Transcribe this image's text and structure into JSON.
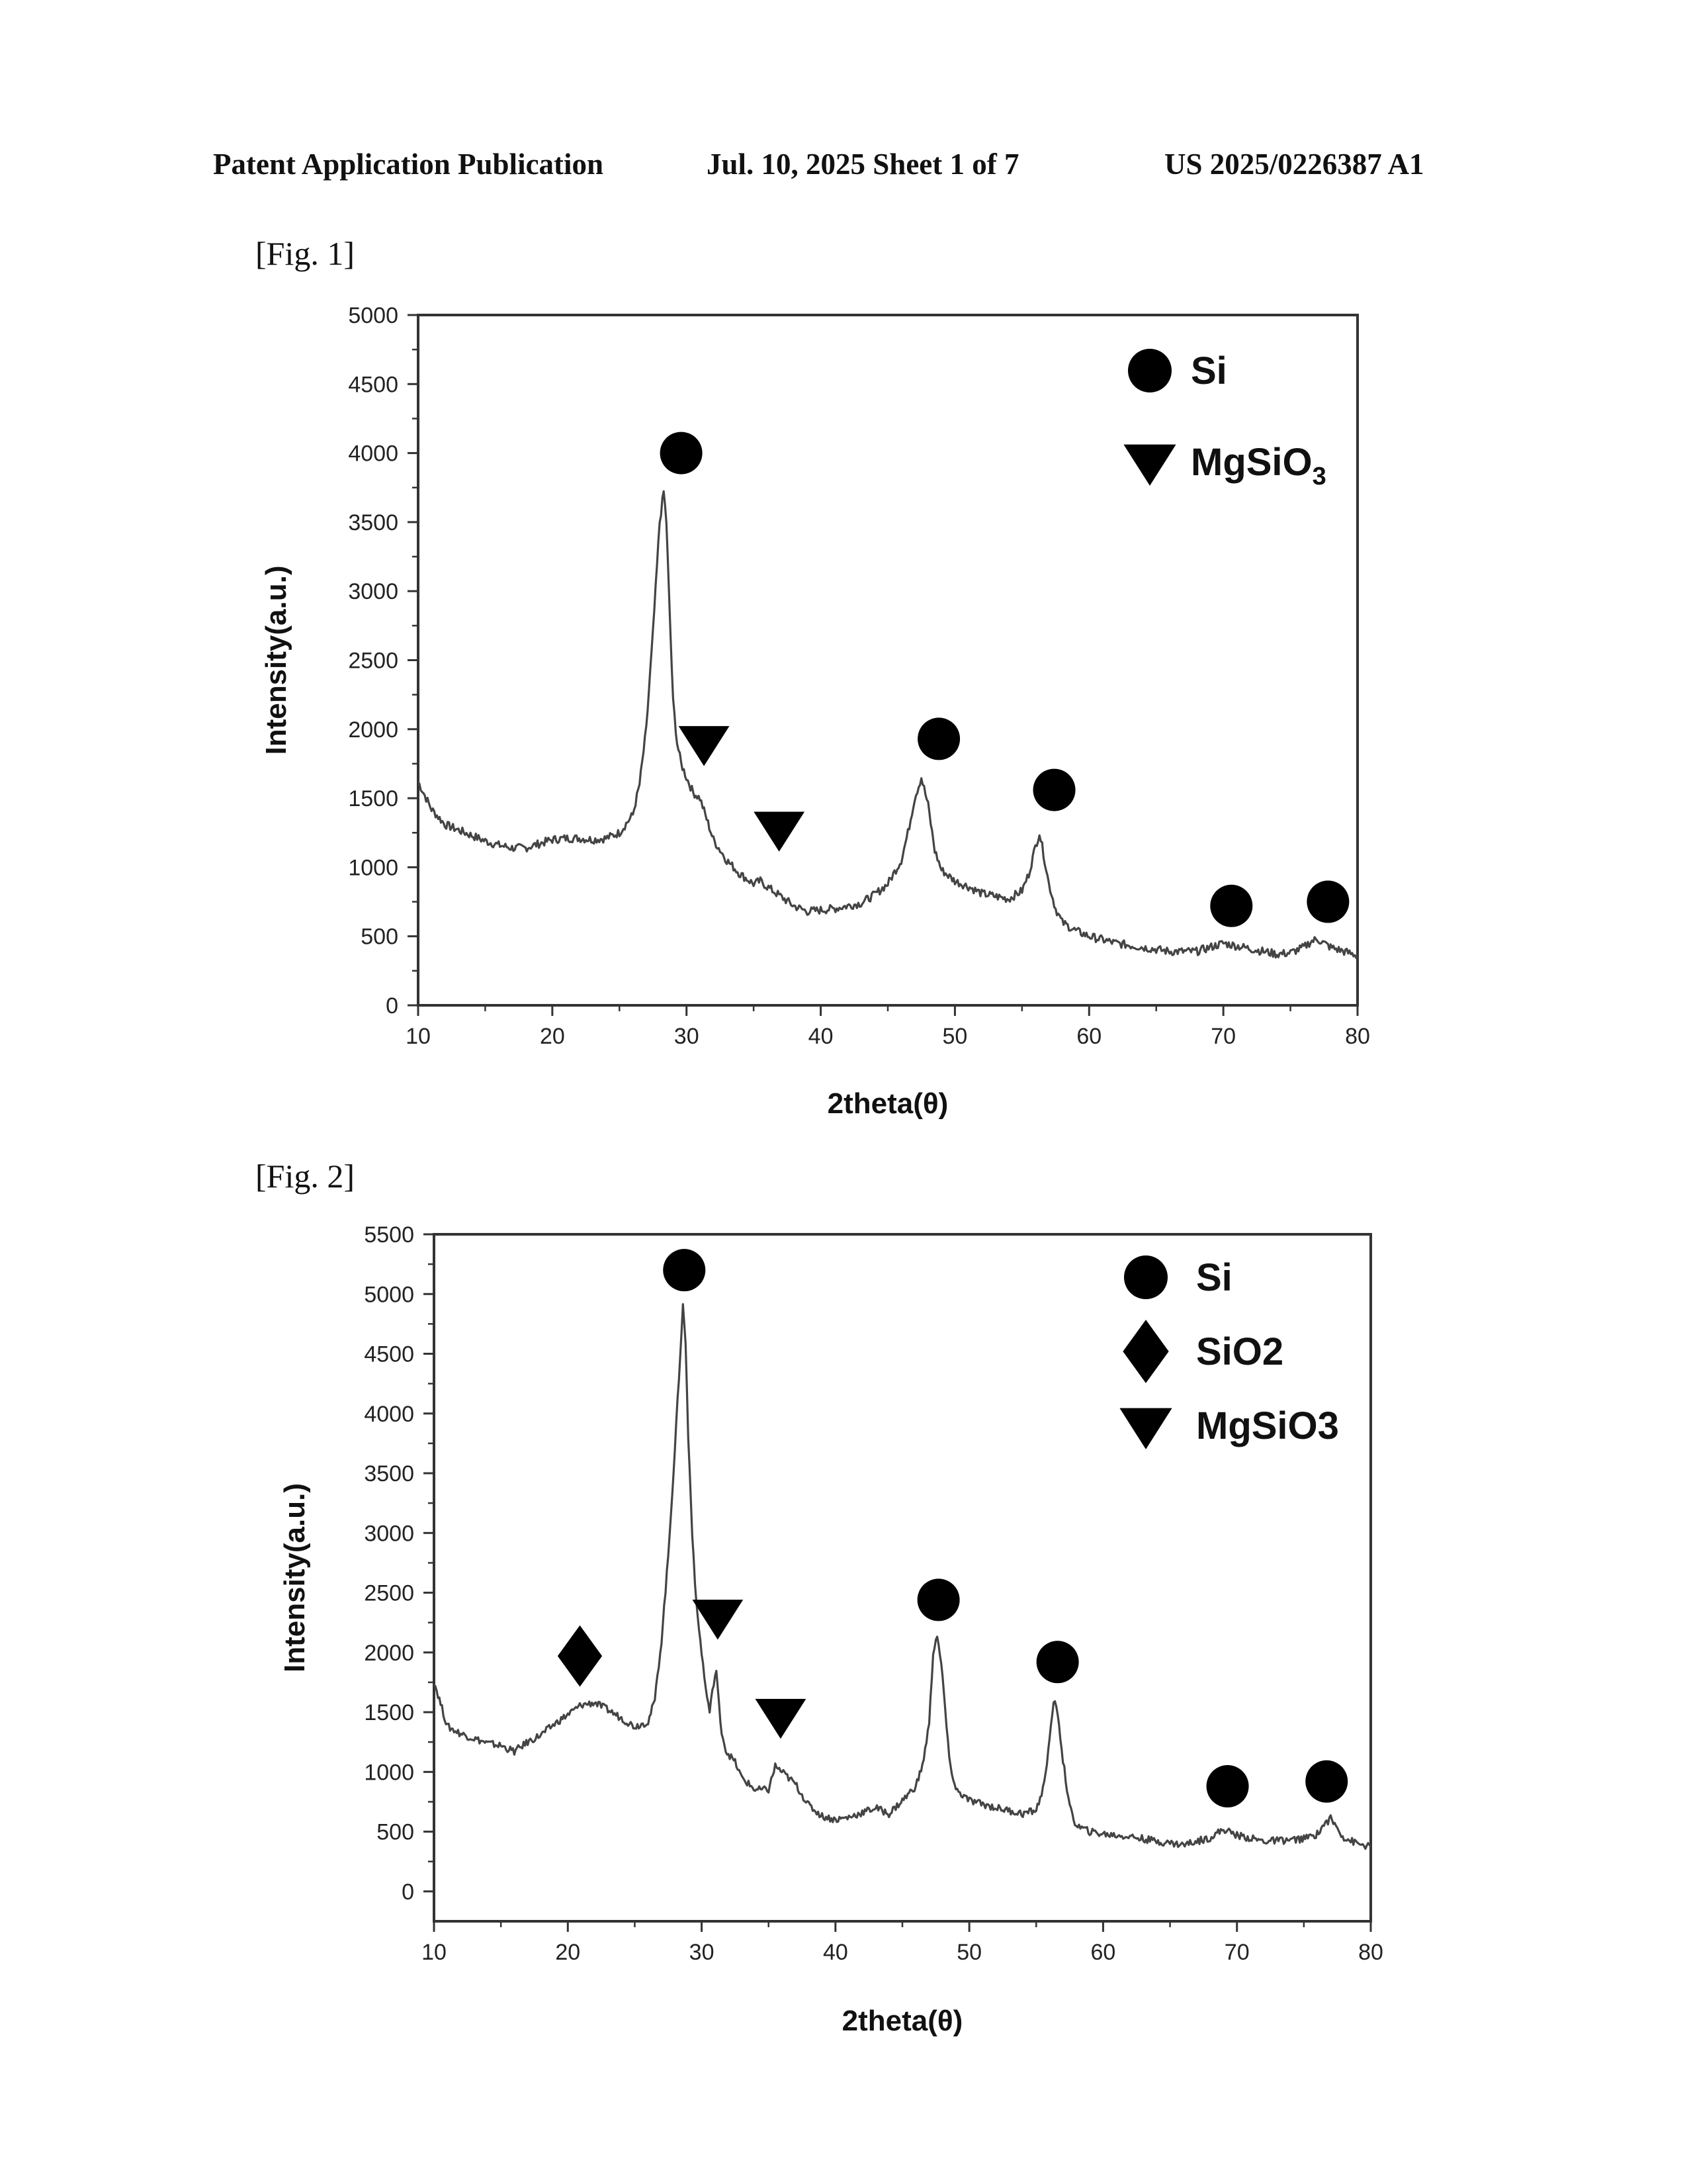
{
  "header": {
    "left": "Patent Application Publication",
    "middle": "Jul. 10, 2025   Sheet 1 of 7",
    "right": "US 2025/0226387 A1"
  },
  "figures": [
    {
      "label": "[Fig. 1]"
    },
    {
      "label": "[Fig. 2]"
    }
  ],
  "chart_data": [
    {
      "type": "line",
      "title": "",
      "xlabel": "2theta(θ)",
      "ylabel": "Intensity(a.u.)",
      "xlim": [
        10,
        80
      ],
      "ylim": [
        0,
        5000
      ],
      "xticks": [
        10,
        20,
        30,
        40,
        50,
        60,
        70,
        80
      ],
      "yticks": [
        0,
        500,
        1000,
        1500,
        2000,
        2500,
        3000,
        3500,
        4000,
        4500,
        5000
      ],
      "grid": false,
      "legend_position": "top-right",
      "legend": [
        {
          "symbol": "circle",
          "label": "Si"
        },
        {
          "symbol": "triangle-down",
          "label": "MgSiO",
          "subscript": "3"
        }
      ],
      "series": [
        {
          "x": [
            10,
            11,
            12,
            13,
            14,
            15,
            16,
            17,
            18,
            19,
            20,
            21,
            22,
            23,
            24,
            25,
            26,
            26.5,
            27,
            27.5,
            28,
            28.3,
            28.5,
            28.8,
            29,
            29.3,
            29.6,
            30,
            30.5,
            31,
            31.5,
            32,
            33,
            34,
            35,
            35.5,
            36,
            37,
            38,
            39,
            40,
            41,
            42,
            43,
            44,
            45,
            46,
            46.5,
            47,
            47.5,
            48,
            48.5,
            49,
            50,
            51,
            52,
            53,
            54,
            55,
            55.5,
            56,
            56.3,
            56.6,
            57,
            57.5,
            58,
            59,
            60,
            62,
            64,
            66,
            68,
            69,
            70,
            72,
            74,
            75,
            76,
            76.5,
            77,
            77.5,
            78,
            79,
            80
          ],
          "y": [
            1620,
            1420,
            1310,
            1270,
            1230,
            1190,
            1160,
            1140,
            1140,
            1170,
            1200,
            1210,
            1210,
            1200,
            1210,
            1250,
            1380,
            1600,
            2000,
            2700,
            3500,
            3720,
            3500,
            2700,
            2200,
            1900,
            1750,
            1650,
            1540,
            1500,
            1350,
            1200,
            1050,
            950,
            880,
            900,
            860,
            790,
            720,
            680,
            690,
            700,
            720,
            740,
            800,
            880,
            1050,
            1250,
            1500,
            1650,
            1450,
            1120,
            980,
            900,
            860,
            810,
            790,
            770,
            830,
            950,
            1150,
            1250,
            1100,
            880,
            700,
            600,
            540,
            500,
            450,
            420,
            390,
            390,
            420,
            450,
            410,
            370,
            380,
            420,
            460,
            480,
            450,
            420,
            390,
            360
          ]
        }
      ],
      "markers": [
        {
          "symbol": "circle",
          "x": 29.6,
          "y": 4000
        },
        {
          "symbol": "triangle-down",
          "x": 31.3,
          "y": 1900
        },
        {
          "symbol": "triangle-down",
          "x": 36.9,
          "y": 1280
        },
        {
          "symbol": "circle",
          "x": 48.8,
          "y": 1930
        },
        {
          "symbol": "circle",
          "x": 57.4,
          "y": 1560
        },
        {
          "symbol": "circle",
          "x": 70.6,
          "y": 720
        },
        {
          "symbol": "circle",
          "x": 77.8,
          "y": 750
        }
      ]
    },
    {
      "type": "line",
      "title": "",
      "xlabel": "2theta(θ)",
      "ylabel": "Intensity(a.u.)",
      "xlim": [
        10,
        80
      ],
      "ylim": [
        -250,
        5500
      ],
      "xticks": [
        10,
        20,
        30,
        40,
        50,
        60,
        70,
        80
      ],
      "yticks": [
        0,
        500,
        1000,
        1500,
        2000,
        2500,
        3000,
        3500,
        4000,
        4500,
        5000,
        5500
      ],
      "grid": false,
      "legend_position": "top-right",
      "legend": [
        {
          "symbol": "circle",
          "label": "Si"
        },
        {
          "symbol": "diamond",
          "label": "SiO2"
        },
        {
          "symbol": "triangle-down",
          "label": "MgSiO3"
        }
      ],
      "series": [
        {
          "x": [
            10,
            11,
            12,
            13,
            14,
            15,
            16,
            17,
            18,
            19,
            20,
            21,
            22,
            23,
            24,
            25,
            26,
            26.5,
            27,
            27.5,
            28,
            28.3,
            28.6,
            28.8,
            29,
            29.3,
            29.6,
            30,
            30.3,
            30.6,
            30.9,
            31.1,
            31.4,
            31.8,
            32.5,
            33,
            34,
            35,
            35.5,
            36,
            37,
            38,
            39,
            40,
            41,
            42,
            43,
            44,
            45,
            46,
            46.5,
            47,
            47.3,
            47.6,
            48,
            48.5,
            49,
            50,
            52,
            54,
            55,
            55.5,
            56,
            56.3,
            56.6,
            57,
            57.5,
            58,
            59,
            60,
            62,
            64,
            66,
            68,
            69,
            70,
            72,
            74,
            75,
            76,
            76.5,
            77,
            77.5,
            78,
            79,
            80
          ],
          "y": [
            1760,
            1380,
            1320,
            1280,
            1240,
            1220,
            1170,
            1250,
            1310,
            1400,
            1480,
            1560,
            1580,
            1520,
            1450,
            1380,
            1420,
            1600,
            2100,
            2800,
            3700,
            4300,
            4900,
            4600,
            3800,
            3000,
            2400,
            2000,
            1700,
            1500,
            1750,
            1850,
            1400,
            1180,
            1080,
            950,
            850,
            850,
            1050,
            1000,
            900,
            720,
            630,
            600,
            620,
            660,
            700,
            650,
            760,
            880,
            1050,
            1400,
            2000,
            2150,
            1800,
            1100,
            850,
            760,
            700,
            650,
            680,
            850,
            1250,
            1600,
            1500,
            1100,
            700,
            550,
            500,
            480,
            460,
            420,
            390,
            450,
            520,
            470,
            420,
            430,
            440,
            480,
            560,
            610,
            530,
            450,
            400,
            370
          ]
        }
      ],
      "markers": [
        {
          "symbol": "circle",
          "x": 28.7,
          "y": 5200
        },
        {
          "symbol": "diamond",
          "x": 20.9,
          "y": 1970
        },
        {
          "symbol": "triangle-down",
          "x": 31.2,
          "y": 2300
        },
        {
          "symbol": "triangle-down",
          "x": 35.9,
          "y": 1470
        },
        {
          "symbol": "circle",
          "x": 47.7,
          "y": 2440
        },
        {
          "symbol": "circle",
          "x": 56.6,
          "y": 1920
        },
        {
          "symbol": "circle",
          "x": 69.3,
          "y": 880
        },
        {
          "symbol": "circle",
          "x": 76.7,
          "y": 920
        }
      ]
    }
  ]
}
